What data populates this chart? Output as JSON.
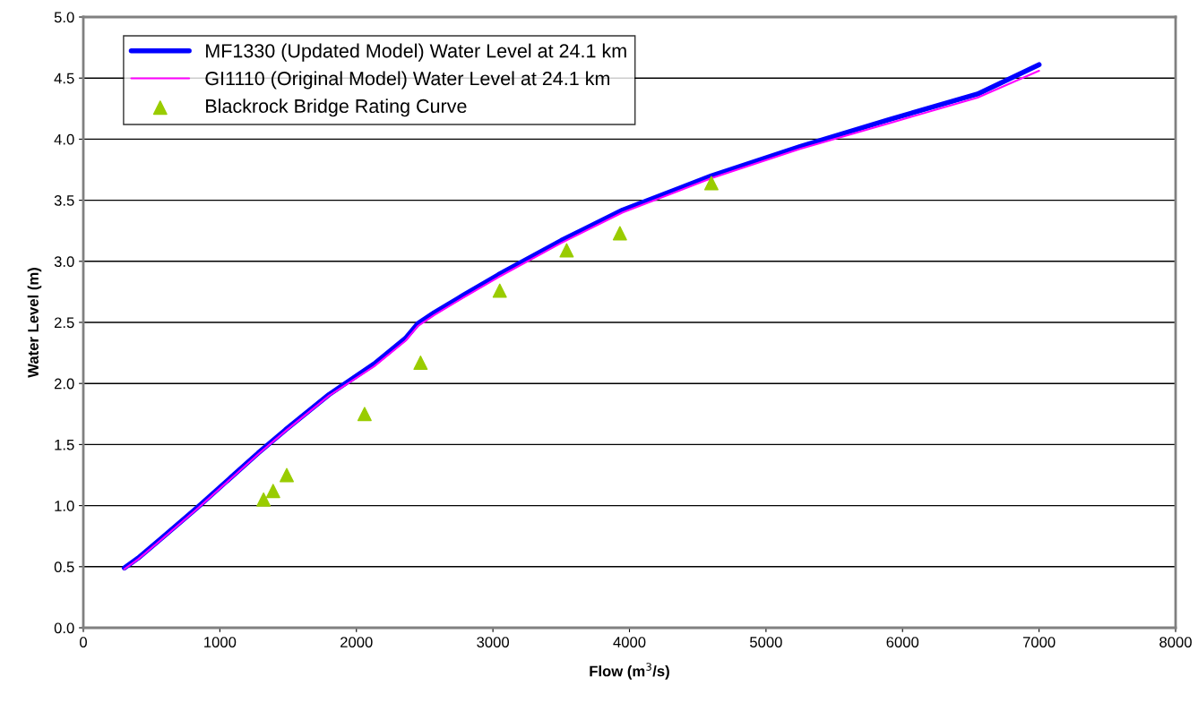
{
  "chart_data": {
    "type": "line",
    "xlabel": "Flow (m$^{3}$/s)",
    "ylabel": "Water Level (m)",
    "xlim": [
      0,
      8000
    ],
    "xticks": [
      0,
      1000,
      2000,
      3000,
      4000,
      5000,
      6000,
      7000,
      8000
    ],
    "ylim": [
      0,
      5.0
    ],
    "yticks": [
      {
        "value": 0,
        "label": "0.0"
      },
      0.5,
      {
        "value": 1,
        "label": "1.0"
      },
      1.5,
      {
        "value": 2,
        "label": "2.0"
      },
      2.5,
      {
        "value": 3,
        "label": "3.0"
      },
      3.5,
      {
        "value": 4,
        "label": "4.0"
      },
      4.5,
      {
        "value": 5,
        "label": "5.0"
      }
    ],
    "grid": "y",
    "legend": "top left",
    "series": [
      {
        "name": "MF1330 (Updated Model) Water Level at 24.1 km",
        "color": "#0000ff",
        "marker": "none",
        "x": [
          300,
          400,
          570,
          830,
          1090,
          1280,
          1480,
          1800,
          2130,
          2360,
          2450,
          2570,
          2780,
          3040,
          3500,
          3950,
          4600,
          5250,
          5900,
          6550,
          7000
        ],
        "values": [
          0.49,
          0.57,
          0.73,
          0.98,
          1.24,
          1.43,
          1.62,
          1.91,
          2.16,
          2.37,
          2.49,
          2.58,
          2.72,
          2.89,
          3.17,
          3.42,
          3.7,
          3.94,
          4.16,
          4.37,
          4.61
        ]
      },
      {
        "name": "GI1110 (Original Model) Water Level at 24.1 km",
        "color": "#ff00ff",
        "type": "line",
        "marker": "none",
        "x": [
          300,
          400,
          570,
          830,
          1090,
          1280,
          1480,
          1800,
          2130,
          2360,
          2450,
          2570,
          2780,
          3040,
          3500,
          3950,
          4600,
          5250,
          5900,
          6550,
          7000
        ],
        "values": [
          0.48,
          0.56,
          0.72,
          0.97,
          1.23,
          1.42,
          1.61,
          1.9,
          2.14,
          2.35,
          2.47,
          2.56,
          2.7,
          2.87,
          3.15,
          3.4,
          3.68,
          3.92,
          4.13,
          4.34,
          4.56
        ]
      },
      {
        "name": "Blackrock Bridge Rating Curve",
        "color": "#99cc00",
        "type": "scatter",
        "marker": "triangle",
        "x": [
          1320,
          1390,
          1490,
          2060,
          2470,
          3050,
          3540,
          3930,
          4600
        ],
        "values": [
          1.05,
          1.12,
          1.25,
          1.75,
          2.17,
          2.76,
          3.09,
          3.23,
          3.64
        ]
      }
    ]
  }
}
